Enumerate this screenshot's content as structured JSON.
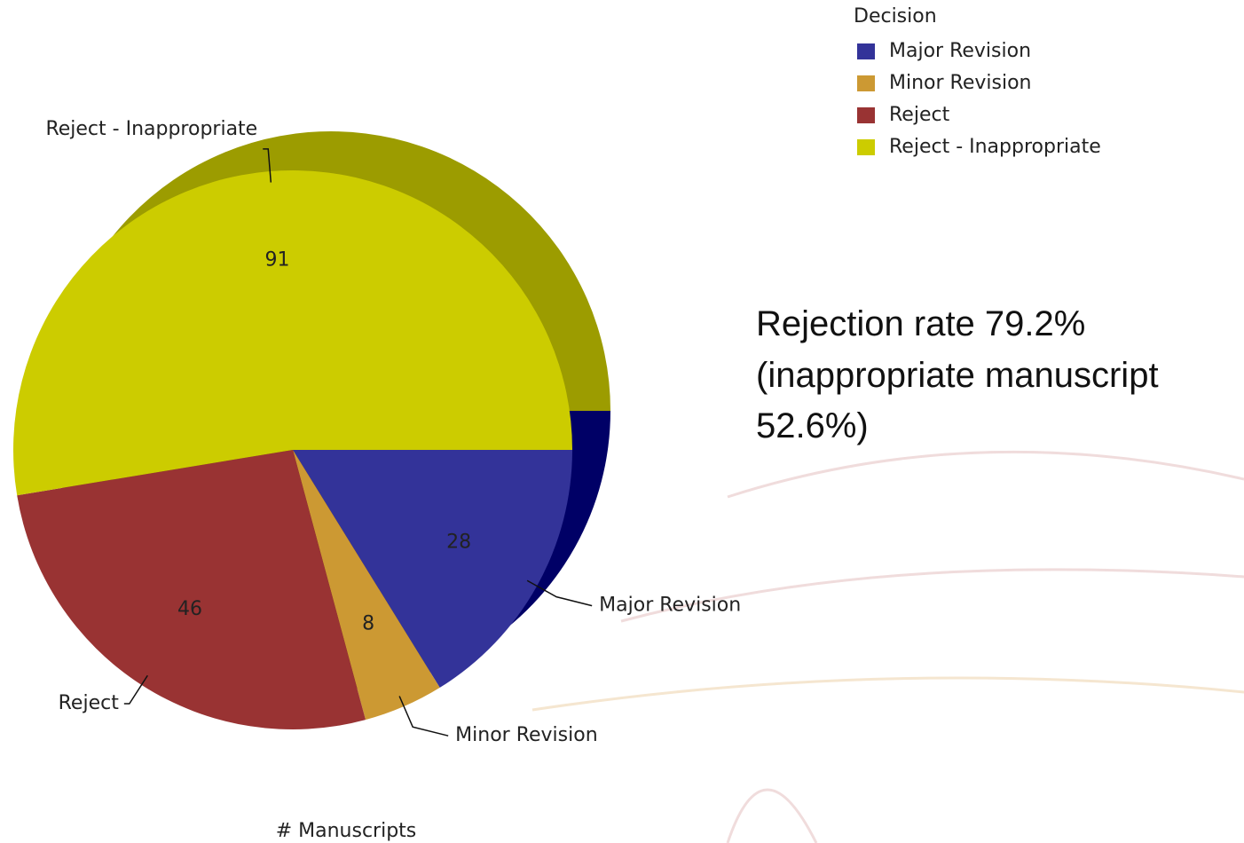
{
  "chart_data": {
    "type": "pie",
    "categories": [
      "Major Revision",
      "Minor Revision",
      "Reject",
      "Reject - Inappropriate"
    ],
    "values": [
      28,
      8,
      46,
      91
    ],
    "colors": [
      "#333399",
      "#cc9933",
      "#993333",
      "#cccc00"
    ],
    "depth_colors": [
      "#000066",
      "#8a6514",
      "#5c1a1a",
      "#9c9c00"
    ],
    "legend_title": "Decision",
    "legend": "top-right",
    "xlabel": "# Manuscripts",
    "annotation": [
      "Rejection rate 79.2%",
      "(inappropriate manuscript",
      "52.6%)"
    ]
  }
}
